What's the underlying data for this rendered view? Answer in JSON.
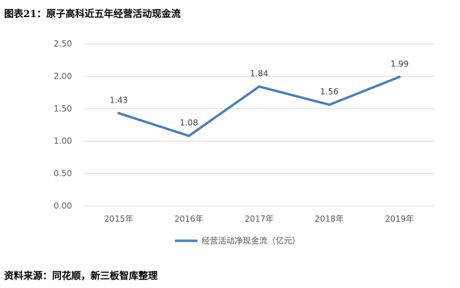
{
  "header": {
    "title": "图表21：原子高科近五年经营活动现金流"
  },
  "footer": {
    "source": "资料来源：同花顺，新三板智库整理"
  },
  "chart_data": {
    "type": "line",
    "categories": [
      "2015年",
      "2016年",
      "2017年",
      "2018年",
      "2019年"
    ],
    "series": [
      {
        "name": "经营活动净现金流（亿元）",
        "values": [
          1.43,
          1.08,
          1.84,
          1.56,
          1.99
        ],
        "color": "#4A7EBB"
      }
    ],
    "data_labels": [
      "1.43",
      "1.08",
      "1.84",
      "1.56",
      "1.99"
    ],
    "yticks": [
      "0.00",
      "0.50",
      "1.00",
      "1.50",
      "2.00",
      "2.50"
    ],
    "ylim": [
      0,
      2.5
    ],
    "grid": true,
    "legend_position": "bottom"
  }
}
